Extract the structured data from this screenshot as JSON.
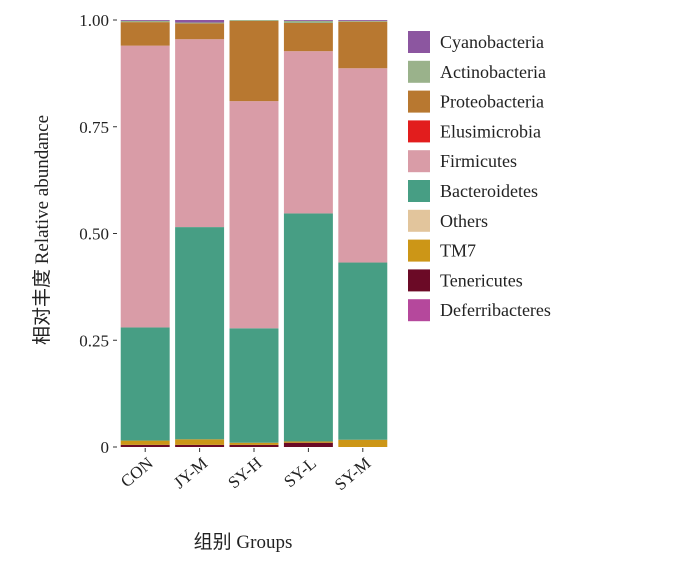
{
  "chart_data": {
    "type": "bar",
    "stacked": true,
    "categories": [
      "CON",
      "JY-M",
      "SY-H",
      "SY-L",
      "SY-M"
    ],
    "xlabel": "组别 Groups",
    "ylabel": "相对丰度 Relative abundance",
    "ylim": [
      0,
      1
    ],
    "yticks": [
      0,
      0.25,
      0.5,
      0.75,
      1.0
    ],
    "ytick_labels": [
      "0",
      "0.25",
      "0.50",
      "0.75",
      "1.00"
    ],
    "grid": false,
    "legend_position": "right",
    "legend_order": [
      "Cyanobacteria",
      "Actinobacteria",
      "Proteobacteria",
      "Elusimicrobia",
      "Firmicutes",
      "Bacteroidetes",
      "Others",
      "TM7",
      "Tenericutes",
      "Deferribacteres"
    ],
    "series": [
      {
        "name": "Tenericutes",
        "color": "#6b0a26",
        "values": [
          0.005,
          0.005,
          0.005,
          0.01,
          0.0
        ]
      },
      {
        "name": "Deferribacteres",
        "color": "#b5489c",
        "values": [
          0.0,
          0.0,
          0.0,
          0.0,
          0.0
        ]
      },
      {
        "name": "TM7",
        "color": "#cc9617",
        "values": [
          0.01,
          0.013,
          0.005,
          0.003,
          0.017
        ]
      },
      {
        "name": "Others",
        "color": "#e2c59c",
        "values": [
          0.0,
          0.0,
          0.0,
          0.0,
          0.0
        ]
      },
      {
        "name": "Bacteroidetes",
        "color": "#479e84",
        "values": [
          0.265,
          0.497,
          0.268,
          0.534,
          0.415
        ]
      },
      {
        "name": "Firmicutes",
        "color": "#d99ca7",
        "values": [
          0.66,
          0.44,
          0.532,
          0.38,
          0.455
        ]
      },
      {
        "name": "Elusimicrobia",
        "color": "#e21d1d",
        "values": [
          0.0,
          0.0,
          0.0,
          0.0,
          0.0
        ]
      },
      {
        "name": "Proteobacteria",
        "color": "#b87830",
        "values": [
          0.055,
          0.037,
          0.188,
          0.066,
          0.109
        ]
      },
      {
        "name": "Actinobacteria",
        "color": "#9ab28b",
        "values": [
          0.003,
          0.002,
          0.002,
          0.005,
          0.002
        ]
      },
      {
        "name": "Cyanobacteria",
        "color": "#8c56a0",
        "values": [
          0.002,
          0.006,
          0.0,
          0.002,
          0.002
        ]
      }
    ]
  }
}
